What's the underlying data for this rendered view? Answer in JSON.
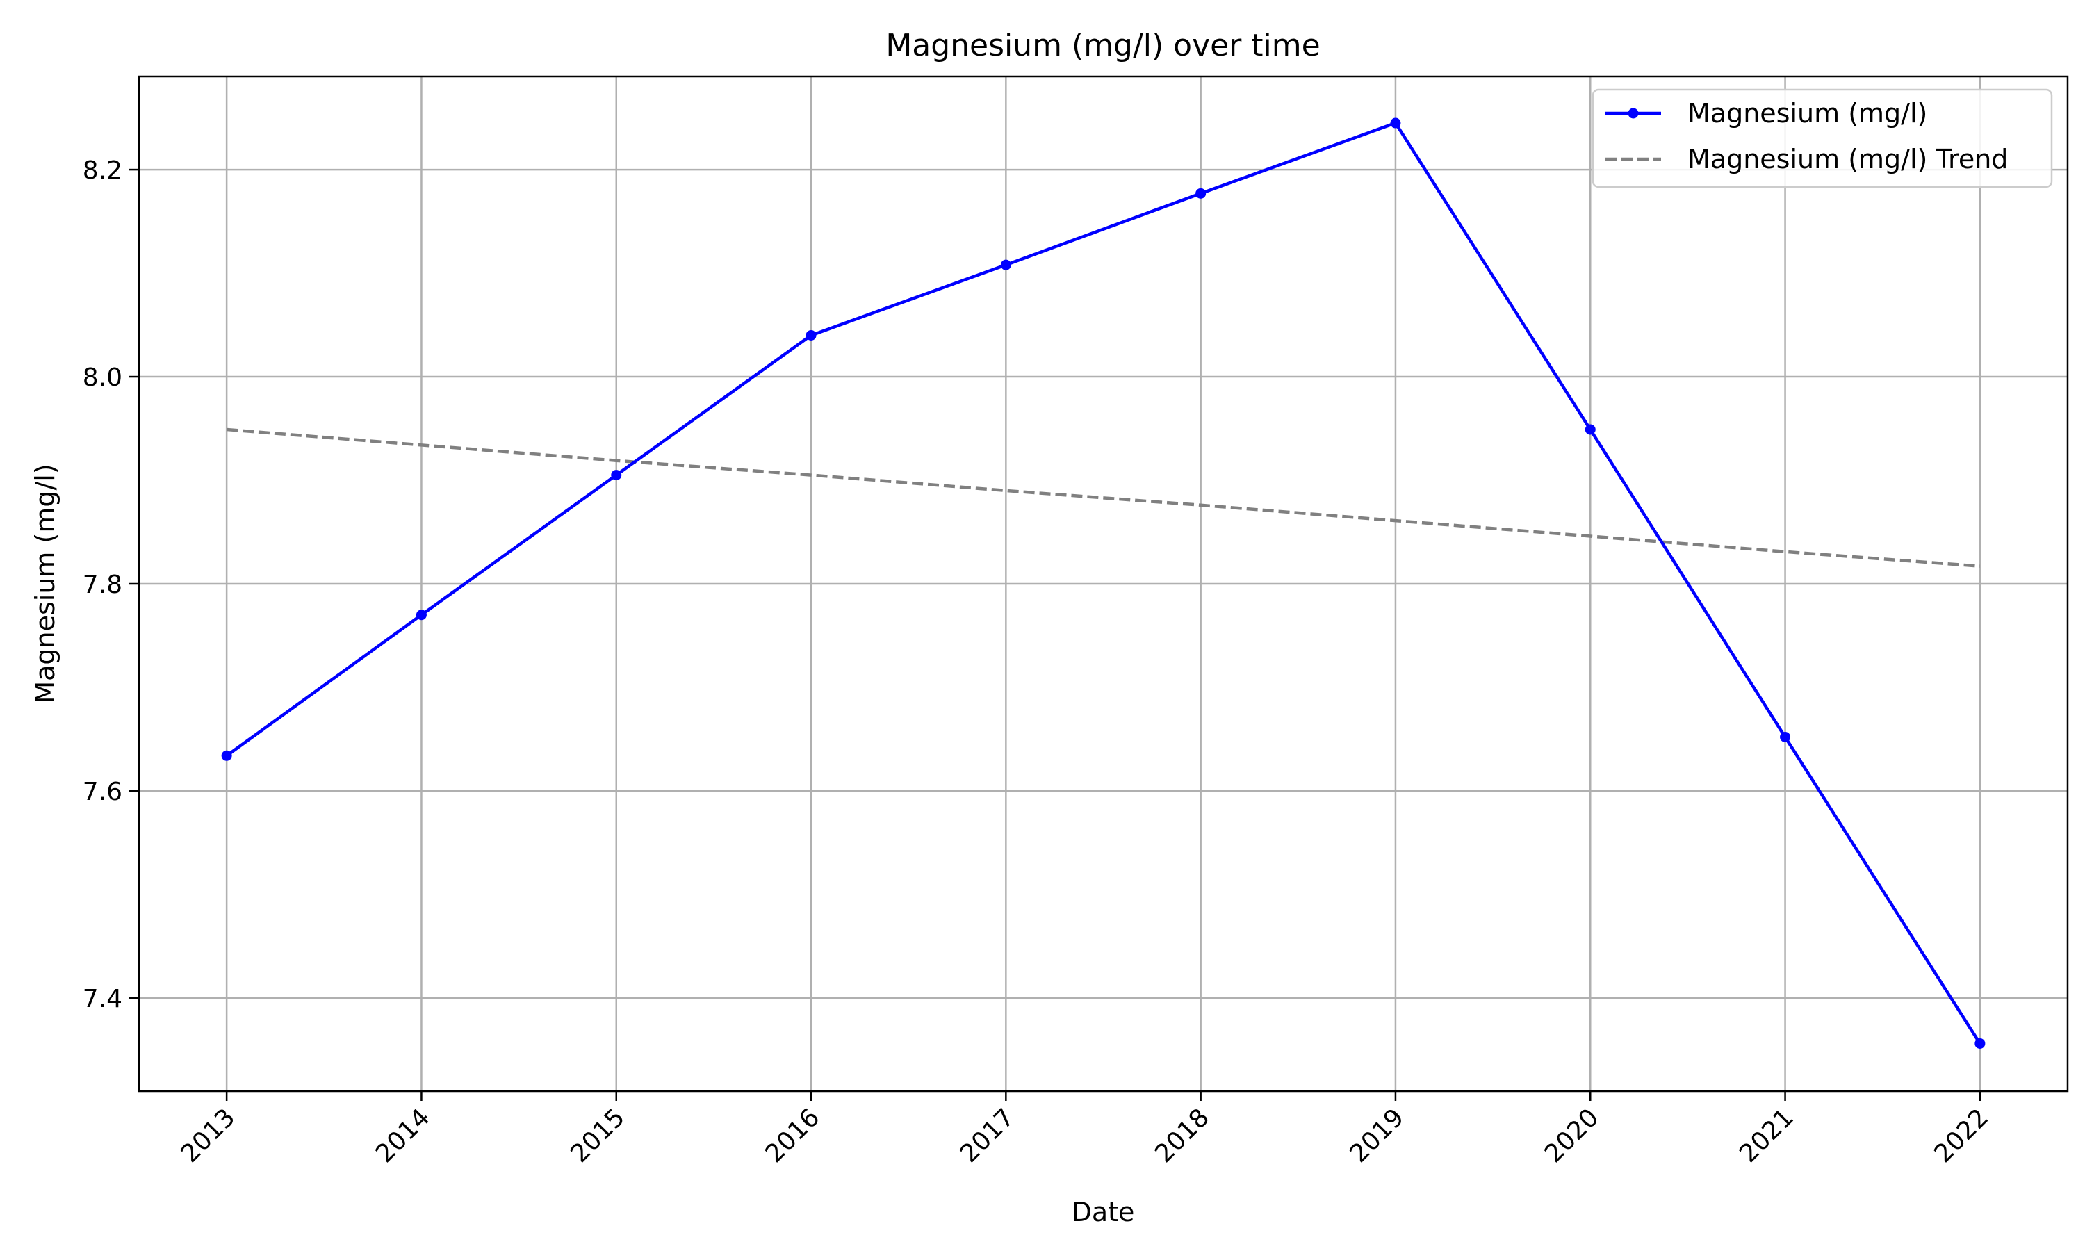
{
  "chart_data": {
    "type": "line",
    "title": "Magnesium (mg/l) over time",
    "xlabel": "Date",
    "ylabel": "Magnesium (mg/l)",
    "x": [
      "2013",
      "2014",
      "2015",
      "2016",
      "2017",
      "2018",
      "2019",
      "2020",
      "2021",
      "2022"
    ],
    "xlim": [
      2012.55,
      2022.45
    ],
    "ylim": [
      7.31,
      8.29
    ],
    "yticks": [
      "7.4",
      "7.6",
      "7.8",
      "8.0",
      "8.2"
    ],
    "xtick_rotation_deg": 45,
    "grid": true,
    "legend_position": "top-right",
    "series": [
      {
        "name": "Magnesium (mg/l)",
        "values": [
          7.634,
          7.77,
          7.905,
          8.04,
          8.108,
          8.177,
          8.245,
          7.949,
          7.652,
          7.356
        ],
        "color": "#0000ff",
        "style": "solid",
        "marker": "circle"
      },
      {
        "name": "Magnesium (mg/l) Trend",
        "values": [
          7.949,
          7.934,
          7.919,
          7.905,
          7.89,
          7.876,
          7.861,
          7.846,
          7.831,
          7.817
        ],
        "color": "#808080",
        "style": "dashed",
        "marker": "none"
      }
    ]
  }
}
